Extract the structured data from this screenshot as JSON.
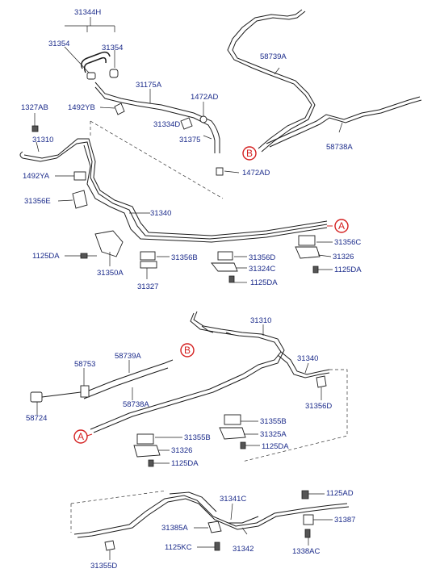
{
  "top": {
    "labels": {
      "p31344H": "31344H",
      "p31354a": "31354",
      "p31354b": "31354",
      "p31175A": "31175A",
      "p1492YBa": "1492YB",
      "p1472ADa": "1472AD",
      "p1327AB": "1327AB",
      "p31334D": "31334D",
      "p31310": "31310",
      "p31375": "31375",
      "p1472ADb": "1472AD",
      "p1492YA": "1492YA",
      "p31356E": "31356E",
      "p31340": "31340",
      "p58739A": "58739A",
      "p58738A": "58738A",
      "p1125DAa": "1125DA",
      "p31356D": "31356D",
      "p31356B": "31356B",
      "p31356C": "31356C",
      "p31324C": "31324C",
      "p31326": "31326",
      "p31350A": "31350A",
      "p31327": "31327",
      "p1125DAb": "1125DA",
      "p1125DAc": "1125DA"
    },
    "callouts": {
      "B": "B",
      "A": "A"
    }
  },
  "middle": {
    "labels": {
      "p31310": "31310",
      "p31340": "31340",
      "p58753": "58753",
      "p58739A": "58739A",
      "p58738A": "58738A",
      "p58724": "58724",
      "p31356D": "31356D",
      "p31355Ba": "31355B",
      "p31325A": "31325A",
      "p1125DAa": "1125DA",
      "p31355Bb": "31355B",
      "p31326": "31326",
      "p1125DAb": "1125DA"
    },
    "callouts": {
      "B": "B",
      "A": "A"
    }
  },
  "bottom": {
    "labels": {
      "p1125AD": "1125AD",
      "p31341C": "31341C",
      "p31387": "31387",
      "p31385A": "31385A",
      "p1125KC": "1125KC",
      "p31342": "31342",
      "p1338AC": "1338AC",
      "p31355D": "31355D"
    }
  }
}
